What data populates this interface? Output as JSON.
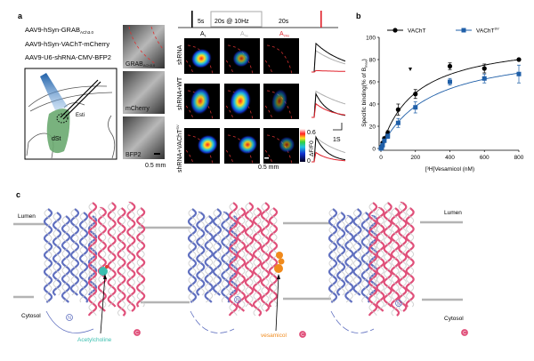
{
  "panel_a": {
    "label": "a",
    "constructs": [
      "AAV9-hSyn-GRAB",
      "AAV9-hSyn-VAChT-mCherry",
      "AAV9-U6-shRNA-CMV-BFP2"
    ],
    "grab_subscript": "ACh3.0",
    "schematic": {
      "region": "dSt",
      "electrode": "Esti"
    },
    "channels": [
      "GRAB",
      "mCherry",
      "BFP2"
    ],
    "scale_bar_left": "0.5 mm",
    "timeline": {
      "seg1": "5s",
      "seg2": "20s @ 10Hz",
      "seg3": "20s"
    },
    "columns": [
      {
        "base": "A",
        "sub": "1",
        "color": "#000000"
      },
      {
        "base": "A",
        "sub": "5s",
        "color": "#b0b0b0"
      },
      {
        "base": "A",
        "sub": "20s",
        "color": "#e0202a"
      }
    ],
    "rows": [
      {
        "label": "shRNA",
        "sup": ""
      },
      {
        "label": "shRNA+WT",
        "sup": ""
      },
      {
        "label": "shRNA+VAChT",
        "sup": "SV"
      }
    ],
    "colorbar": {
      "max": "0.6",
      "min": "0",
      "label": "ΔF/F0"
    },
    "scale_bar_images": "0.5 mm",
    "trace_scale": "1S"
  },
  "panel_b": {
    "label": "b",
    "chart_data": {
      "type": "scatter",
      "xlabel": "[³H]Vesamicol (nM)",
      "ylabel": "Specific binding(% of B",
      "ylabel_sub": "max",
      "ylabel_end": ")",
      "xlim": [
        0,
        800
      ],
      "ylim": [
        0,
        100
      ],
      "xticks": [
        0,
        200,
        400,
        600,
        800
      ],
      "yticks": [
        0,
        20,
        40,
        60,
        80,
        100
      ],
      "legend_position": "top",
      "series": [
        {
          "name": "VAChT",
          "sup": "",
          "color": "#000000",
          "marker": "circle",
          "x": [
            0,
            5,
            10,
            20,
            40,
            100,
            200,
            400,
            600,
            800
          ],
          "y": [
            0,
            2,
            5,
            9,
            14,
            35,
            49,
            74,
            72,
            80
          ],
          "err": [
            1,
            1,
            1,
            1.5,
            2,
            5,
            4,
            3,
            4,
            1
          ]
        },
        {
          "name": "VAChT",
          "sup": "SV",
          "color": "#1f5fa8",
          "marker": "square",
          "x": [
            0,
            5,
            10,
            20,
            40,
            100,
            200,
            400,
            600,
            800
          ],
          "y": [
            0,
            1,
            3,
            7,
            11,
            23,
            37,
            60,
            63,
            67
          ],
          "err": [
            1,
            1,
            1,
            1.5,
            2,
            4,
            5,
            3,
            4,
            8
          ]
        }
      ]
    }
  },
  "panel_c": {
    "label": "c",
    "lumen": "Lumen",
    "cytosol": "Cytosol",
    "ligand1": "Acetylcholine",
    "ligand2": "vesamicol",
    "n_term": "N",
    "c_term": "C",
    "colors": {
      "n_domain": "#6070c0",
      "c_domain": "#e0507a",
      "membrane": "#b4b4b4",
      "acetylcholine": "#3bbfb0",
      "vesamicol": "#f08a1c"
    }
  }
}
